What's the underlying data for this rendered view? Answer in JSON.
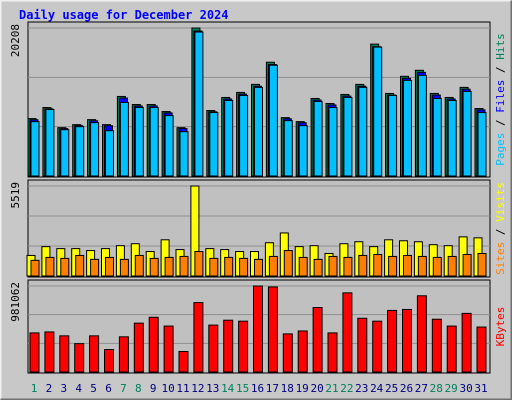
{
  "title": "Daily usage for December 2024",
  "legend_separator": " / ",
  "chart_data": [
    {
      "type": "bar",
      "ylim": [
        0,
        20208
      ],
      "yticks": [
        20208
      ],
      "series": [
        {
          "name": "Pages",
          "color": "#00c0ff",
          "values": [
            7423,
            9073,
            6324,
            6736,
            7286,
            6186,
            10035,
            9348,
            9348,
            8248,
            6049,
            19658,
            8661,
            10310,
            10998,
            12097,
            15122,
            7561,
            6874,
            10173,
            9348,
            10723,
            12097,
            17596,
            10998,
            13060,
            13747,
            10585,
            10310,
            11547,
            8661
          ]
        },
        {
          "name": "Files",
          "color": "#0000ff",
          "values": [
            7680,
            9160,
            6470,
            6870,
            7540,
            6870,
            10640,
            9560,
            9560,
            8620,
            6470,
            19800,
            8760,
            10510,
            11180,
            12260,
            15220,
            7810,
            7270,
            10370,
            9700,
            10910,
            12260,
            17650,
            11050,
            13340,
            14150,
            11050,
            10510,
            11850,
            9030
          ]
        },
        {
          "name": "Hits",
          "color": "#00805c",
          "values": [
            7836,
            9348,
            6599,
            7011,
            7698,
            7011,
            10860,
            9760,
            9760,
            8798,
            6599,
            20208,
            8936,
            10723,
            11410,
            12510,
            15534,
            7973,
            7423,
            10585,
            9898,
            11135,
            12510,
            18009,
            11273,
            13610,
            14434,
            11273,
            10723,
            12097,
            9211
          ]
        }
      ]
    },
    {
      "type": "bar",
      "ylim": [
        0,
        5519
      ],
      "yticks": [
        5519
      ],
      "series": [
        {
          "name": "Sites",
          "color": "#ff8000",
          "values": [
            960,
            1140,
            1080,
            1260,
            1020,
            1140,
            1020,
            1260,
            1080,
            1140,
            1200,
            1500,
            1080,
            1140,
            1080,
            1020,
            1200,
            1560,
            1140,
            1020,
            1200,
            1140,
            1260,
            1320,
            1200,
            1260,
            1200,
            1140,
            1200,
            1320,
            1380
          ]
        },
        {
          "name": "Visits",
          "color": "#ffff00",
          "values": [
            1260,
            1800,
            1680,
            1680,
            1560,
            1680,
            1860,
            1980,
            1500,
            2220,
            1620,
            5519,
            1680,
            1620,
            1500,
            1500,
            2040,
            2640,
            1800,
            1860,
            1380,
            1980,
            2100,
            1800,
            2220,
            2160,
            2100,
            1920,
            1860,
            2400,
            2340
          ]
        }
      ]
    },
    {
      "type": "bar",
      "ylim": [
        0,
        981062
      ],
      "yticks": [
        981062
      ],
      "categories": [
        "1",
        "2",
        "3",
        "4",
        "5",
        "6",
        "7",
        "8",
        "9",
        "10",
        "11",
        "12",
        "13",
        "14",
        "15",
        "16",
        "17",
        "18",
        "19",
        "20",
        "21",
        "22",
        "23",
        "24",
        "25",
        "26",
        "27",
        "28",
        "29",
        "30",
        "31"
      ],
      "category_colors": [
        "#00805c",
        "#000080",
        "#000080",
        "#000080",
        "#000080",
        "#000080",
        "#00805c",
        "#00805c",
        "#000080",
        "#000080",
        "#000080",
        "#000080",
        "#000080",
        "#00805c",
        "#00805c",
        "#000080",
        "#000080",
        "#000080",
        "#000080",
        "#000080",
        "#00805c",
        "#00805c",
        "#000080",
        "#000080",
        "#000080",
        "#000080",
        "#000080",
        "#00805c",
        "#00805c",
        "#000080",
        "#000080"
      ],
      "series": [
        {
          "name": "KBytes",
          "color": "#ff0000",
          "values": [
            445920,
            457068,
            412476,
            323292,
            412476,
            256404,
            401328,
            557400,
            624288,
            523956,
            234108,
            791508,
            535104,
            590844,
            579696,
            981062,
            969876,
            434772,
            468216,
            735768,
            445920,
            902988,
            613140,
            579696,
            702324,
            713472,
            869544,
            601992,
            523956,
            668880,
            512808
          ]
        }
      ]
    }
  ]
}
